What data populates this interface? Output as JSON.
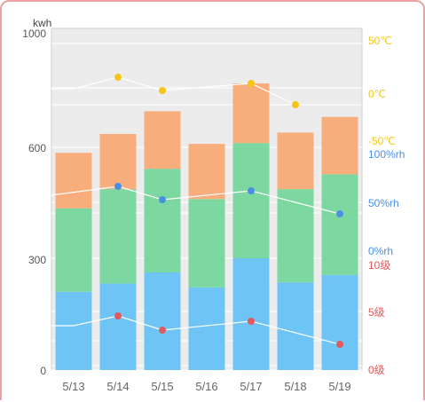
{
  "chart_data": {
    "type": "bar",
    "categories": [
      "5/13",
      "5/14",
      "5/15",
      "5/16",
      "5/17",
      "5/18",
      "5/19"
    ],
    "ylabel": "kwh",
    "ylim": [
      0,
      1000
    ],
    "yticks": [
      "0",
      "300",
      "600",
      "1000"
    ],
    "stacks": [
      {
        "color": "#6ec4f4",
        "values": [
          210,
          232,
          262,
          222,
          300,
          235,
          255
        ]
      },
      {
        "color": "#7cd8a0",
        "values": [
          225,
          255,
          280,
          238,
          315,
          252,
          272
        ]
      },
      {
        "color": "#f8ad7c",
        "values": [
          150,
          160,
          185,
          152,
          210,
          165,
          180
        ]
      }
    ],
    "lines": [
      {
        "label_color": "#f5c518",
        "point_color": "#f5c518",
        "ticks": [
          "50℃",
          "0℃",
          "-50℃"
        ],
        "values": [
          -10,
          13,
          2,
          null,
          9,
          -8,
          null
        ]
      },
      {
        "label_color": "#4a90e2",
        "point_color": "#4a90e2",
        "ticks": [
          "100%rh",
          "50%rh",
          "0%rh"
        ],
        "values": [
          null,
          56,
          41,
          null,
          51,
          null,
          16
        ]
      },
      {
        "label_color": "#e05b5b",
        "point_color": "#e05b5b",
        "ticks": [
          "10级",
          "5级",
          "0级"
        ],
        "values": [
          null,
          5.4,
          4.3,
          null,
          5.1,
          null,
          2.8
        ]
      }
    ],
    "grid": true
  }
}
